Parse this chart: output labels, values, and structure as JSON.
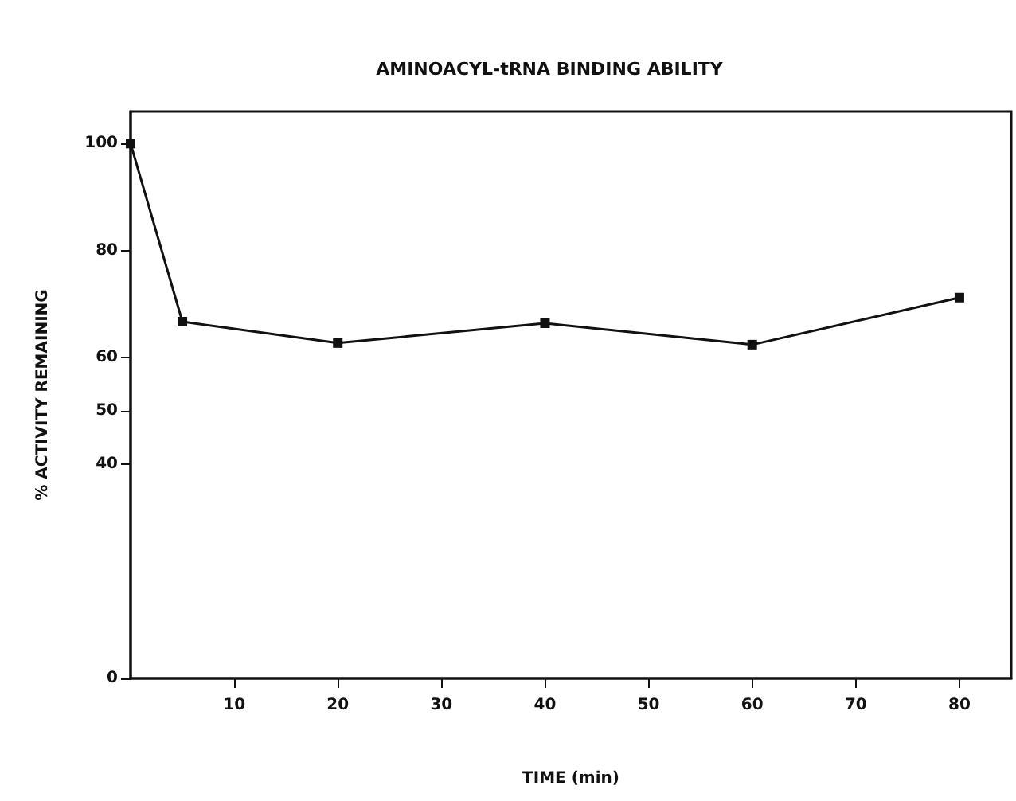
{
  "chart_data": {
    "type": "line",
    "title": "AMINOACYL-tRNA BINDING ABILITY",
    "xlabel": "TIME (min)",
    "ylabel": "% ACTIVITY REMAINING",
    "x": [
      0,
      5,
      20,
      40,
      60,
      80
    ],
    "series": [
      {
        "color": "#111111",
        "values": [
          100,
          66.7,
          62.7,
          66.4,
          62.4,
          71.2
        ]
      }
    ],
    "xlim": [
      0,
      85
    ],
    "xticks": [
      10,
      20,
      30,
      40,
      50,
      60,
      70,
      80
    ],
    "ylim": [
      0,
      106
    ],
    "yticks": [
      0,
      40,
      50,
      60,
      80,
      100
    ],
    "grid": false,
    "marker": "square",
    "line_style": "solid"
  }
}
